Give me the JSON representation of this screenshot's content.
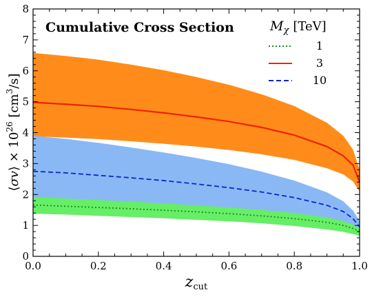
{
  "chart_data": {
    "type": "line",
    "title": "Cumulative Cross Section",
    "xlabel": "z_cut",
    "ylabel": "⟨σv⟩ × 10^26 [cm^3/s]",
    "xlim": [
      0,
      1
    ],
    "ylim": [
      0,
      8
    ],
    "x_ticks": [
      "0.0",
      "0.2",
      "0.4",
      "0.6",
      "0.8",
      "1.0"
    ],
    "y_ticks": [
      "0",
      "1",
      "2",
      "3",
      "4",
      "5",
      "6",
      "7",
      "8"
    ],
    "grid": false,
    "legend": {
      "title": "M_χ [TeV]",
      "position": "top-right"
    },
    "x": [
      0.0,
      0.1,
      0.2,
      0.3,
      0.4,
      0.5,
      0.6,
      0.7,
      0.8,
      0.9,
      0.95,
      0.98,
      1.0
    ],
    "series": [
      {
        "name": "1",
        "style": "dotted",
        "line_color": "#1a8a1a",
        "band_color": "#66ee66",
        "values": [
          1.66,
          1.62,
          1.58,
          1.54,
          1.49,
          1.44,
          1.38,
          1.31,
          1.22,
          1.1,
          1.0,
          0.9,
          0.8
        ],
        "band_upper": [
          1.92,
          1.87,
          1.82,
          1.77,
          1.71,
          1.65,
          1.58,
          1.5,
          1.4,
          1.26,
          1.14,
          1.02,
          0.92
        ],
        "band_lower": [
          1.38,
          1.35,
          1.31,
          1.27,
          1.23,
          1.18,
          1.13,
          1.07,
          0.98,
          0.87,
          0.79,
          0.72,
          0.66
        ]
      },
      {
        "name": "3",
        "style": "solid",
        "line_color": "#ee2200",
        "band_color": "#ff8c1a",
        "values": [
          4.98,
          4.92,
          4.85,
          4.75,
          4.64,
          4.51,
          4.36,
          4.17,
          3.92,
          3.55,
          3.25,
          2.95,
          2.4
        ],
        "band_upper": [
          6.58,
          6.48,
          6.36,
          6.2,
          6.02,
          5.8,
          5.55,
          5.24,
          4.86,
          4.32,
          3.9,
          3.45,
          2.8
        ],
        "band_lower": [
          3.88,
          3.84,
          3.79,
          3.72,
          3.64,
          3.55,
          3.44,
          3.3,
          3.12,
          2.85,
          2.65,
          2.42,
          2.1
        ]
      },
      {
        "name": "10",
        "style": "dashed",
        "line_color": "#1020cc",
        "band_color": "#8ab8f5",
        "values": [
          2.75,
          2.7,
          2.62,
          2.54,
          2.45,
          2.34,
          2.22,
          2.08,
          1.9,
          1.65,
          1.45,
          1.22,
          0.95
        ],
        "band_upper": [
          3.9,
          3.8,
          3.67,
          3.52,
          3.36,
          3.18,
          2.98,
          2.74,
          2.45,
          2.07,
          1.78,
          1.48,
          1.15
        ],
        "band_lower": [
          1.85,
          1.81,
          1.76,
          1.71,
          1.64,
          1.57,
          1.49,
          1.39,
          1.26,
          1.08,
          0.95,
          0.84,
          0.72
        ]
      }
    ]
  }
}
